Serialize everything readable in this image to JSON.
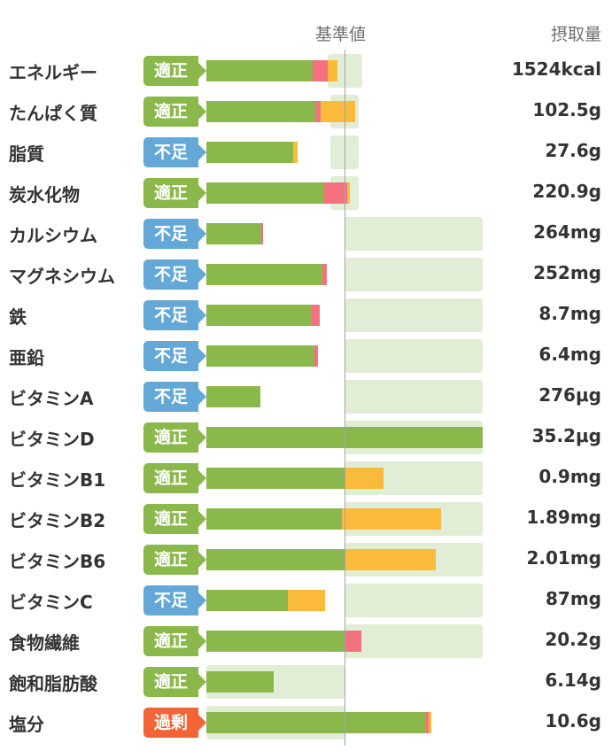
{
  "header": {
    "baseline_label": "基準値",
    "intake_label": "摂取量"
  },
  "status_colors": {
    "適正": "#8bb84a",
    "不足": "#64a8d8",
    "過剰": "#f26435"
  },
  "rows": [
    {
      "name": "エネルギー",
      "status": "適正",
      "value": "1524kcal",
      "range": [
        0.88,
        1.13
      ],
      "segments": [
        [
          "green",
          0,
          0.77
        ],
        [
          "pink",
          0.77,
          0.88
        ],
        [
          "orange",
          0.88,
          0.95
        ]
      ]
    },
    {
      "name": "たんぱく質",
      "status": "適正",
      "value": "102.5g",
      "range": [
        0.9,
        1.1
      ],
      "segments": [
        [
          "green",
          0,
          0.79
        ],
        [
          "pink",
          0.79,
          0.83
        ],
        [
          "orange",
          0.83,
          1.08
        ]
      ]
    },
    {
      "name": "脂質",
      "status": "不足",
      "value": "27.6g",
      "range": [
        0.9,
        1.1
      ],
      "segments": [
        [
          "green",
          0,
          0.63
        ],
        [
          "orange",
          0.63,
          0.66
        ]
      ]
    },
    {
      "name": "炭水化物",
      "status": "適正",
      "value": "220.9g",
      "range": [
        0.9,
        1.1
      ],
      "segments": [
        [
          "green",
          0,
          0.85
        ],
        [
          "pink",
          0.85,
          1.02
        ],
        [
          "orange",
          1.02,
          1.04
        ]
      ]
    },
    {
      "name": "カルシウム",
      "status": "不足",
      "value": "264mg",
      "range": [
        1.0,
        2.0
      ],
      "segments": [
        [
          "green",
          0,
          0.4
        ],
        [
          "pink",
          0.4,
          0.41
        ]
      ]
    },
    {
      "name": "マグネシウム",
      "status": "不足",
      "value": "252mg",
      "range": [
        1.0,
        2.0
      ],
      "segments": [
        [
          "green",
          0,
          0.84
        ],
        [
          "pink",
          0.84,
          0.87
        ]
      ]
    },
    {
      "name": "鉄",
      "status": "不足",
      "value": "8.7mg",
      "range": [
        1.0,
        2.0
      ],
      "segments": [
        [
          "green",
          0,
          0.76
        ],
        [
          "pink",
          0.76,
          0.82
        ]
      ]
    },
    {
      "name": "亜鉛",
      "status": "不足",
      "value": "6.4mg",
      "range": [
        1.0,
        2.0
      ],
      "segments": [
        [
          "green",
          0,
          0.78
        ],
        [
          "pink",
          0.78,
          0.81
        ]
      ]
    },
    {
      "name": "ビタミンA",
      "status": "不足",
      "value": "276μg",
      "range": [
        1.0,
        2.0
      ],
      "segments": [
        [
          "green",
          0,
          0.39
        ]
      ]
    },
    {
      "name": "ビタミンD",
      "status": "適正",
      "value": "35.2μg",
      "range": [
        1.0,
        2.0
      ],
      "segments": [
        [
          "green",
          0,
          2.0
        ]
      ]
    },
    {
      "name": "ビタミンB1",
      "status": "適正",
      "value": "0.9mg",
      "range": [
        1.0,
        2.0
      ],
      "segments": [
        [
          "green",
          0,
          1.0
        ],
        [
          "orange",
          1.0,
          1.28
        ]
      ]
    },
    {
      "name": "ビタミンB2",
      "status": "適正",
      "value": "1.89mg",
      "range": [
        1.0,
        2.0
      ],
      "segments": [
        [
          "green",
          0,
          0.98
        ],
        [
          "orange",
          0.98,
          1.7
        ]
      ]
    },
    {
      "name": "ビタミンB6",
      "status": "適正",
      "value": "2.01mg",
      "range": [
        1.0,
        2.0
      ],
      "segments": [
        [
          "green",
          0,
          1.0
        ],
        [
          "orange",
          1.0,
          1.66
        ]
      ]
    },
    {
      "name": "ビタミンC",
      "status": "不足",
      "value": "87mg",
      "range": [
        1.0,
        2.0
      ],
      "segments": [
        [
          "green",
          0,
          0.59
        ],
        [
          "orange",
          0.59,
          0.86
        ]
      ]
    },
    {
      "name": "食物繊維",
      "status": "適正",
      "value": "20.2g",
      "range": [
        1.0,
        2.0
      ],
      "segments": [
        [
          "green",
          0,
          1.0
        ],
        [
          "pink",
          1.0,
          1.12
        ]
      ]
    },
    {
      "name": "飽和脂肪酸",
      "status": "適正",
      "value": "6.14g",
      "range": [
        0.0,
        1.0
      ],
      "segments": [
        [
          "green",
          0,
          0.49
        ]
      ]
    },
    {
      "name": "塩分",
      "status": "過剰",
      "value": "10.6g",
      "range": [
        0.0,
        1.0
      ],
      "segments": [
        [
          "green",
          0,
          1.59
        ],
        [
          "pink",
          1.59,
          1.61
        ],
        [
          "orange",
          1.61,
          1.63
        ]
      ]
    }
  ]
}
